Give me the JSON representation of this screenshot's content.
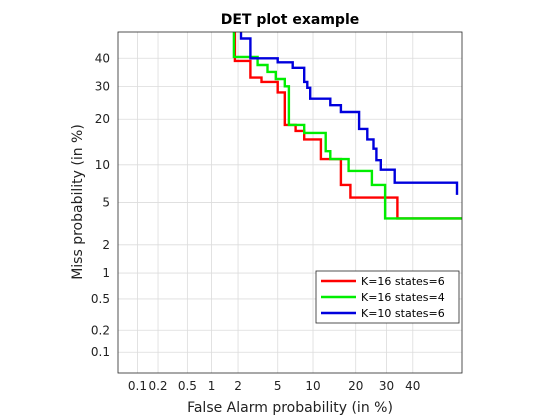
{
  "chart_data": {
    "type": "line",
    "title": "DET plot example",
    "xlabel": "False Alarm probability (in %)",
    "ylabel": "Miss probability (in %)",
    "scale": "normal-deviate (probit) on both axes",
    "xlim": [
      0.05,
      60
    ],
    "ylim": [
      0.05,
      50
    ],
    "xticks": [
      0.1,
      0.2,
      0.5,
      1,
      2,
      5,
      10,
      20,
      30,
      40
    ],
    "xtick_labels": [
      "0.1",
      "0.2",
      "0.5",
      "1",
      "2",
      "5",
      "10",
      "20",
      "30",
      "40"
    ],
    "yticks": [
      0.1,
      0.2,
      0.5,
      1,
      2,
      5,
      10,
      20,
      30,
      40
    ],
    "ytick_labels": [
      "0.1",
      "0.2",
      "0.5",
      "1",
      "2",
      "5",
      "10",
      "20",
      "30",
      "40"
    ],
    "grid": true,
    "legend": "bottom-right",
    "series": [
      {
        "name": "K=16 states=6",
        "color": "#ff0000",
        "points": [
          [
            1.85,
            60
          ],
          [
            1.85,
            39
          ],
          [
            2.7,
            39
          ],
          [
            2.7,
            33
          ],
          [
            3.5,
            33
          ],
          [
            3.5,
            31.5
          ],
          [
            5,
            31.5
          ],
          [
            5,
            28
          ],
          [
            5.8,
            28
          ],
          [
            5.8,
            18.5
          ],
          [
            7.2,
            18.5
          ],
          [
            7.2,
            17
          ],
          [
            8.5,
            17
          ],
          [
            8.5,
            15
          ],
          [
            11.5,
            15
          ],
          [
            11.5,
            11
          ],
          [
            16,
            11
          ],
          [
            16,
            7
          ],
          [
            18.5,
            7
          ],
          [
            18.5,
            5.5
          ],
          [
            34,
            5.5
          ],
          [
            34,
            3.6
          ],
          [
            60,
            3.6
          ]
        ]
      },
      {
        "name": "K=16 states=4",
        "color": "#00ee00",
        "points": [
          [
            1.8,
            60
          ],
          [
            1.8,
            40.5
          ],
          [
            3.2,
            40.5
          ],
          [
            3.2,
            37.5
          ],
          [
            4,
            37.5
          ],
          [
            4,
            35
          ],
          [
            4.8,
            35
          ],
          [
            4.8,
            32.5
          ],
          [
            5.8,
            32.5
          ],
          [
            5.8,
            30
          ],
          [
            6.3,
            30
          ],
          [
            6.3,
            18.5
          ],
          [
            8.5,
            18.5
          ],
          [
            8.5,
            16.5
          ],
          [
            12.5,
            16.5
          ],
          [
            12.5,
            12.5
          ],
          [
            13.5,
            12.5
          ],
          [
            13.5,
            11
          ],
          [
            18,
            11
          ],
          [
            18,
            9
          ],
          [
            25,
            9
          ],
          [
            25,
            7
          ],
          [
            29.5,
            7
          ],
          [
            29.5,
            3.6
          ],
          [
            60,
            3.6
          ]
        ]
      },
      {
        "name": "K=10 states=6",
        "color": "#0000dd",
        "points": [
          [
            2.15,
            60
          ],
          [
            2.15,
            47.5
          ],
          [
            2.7,
            47.5
          ],
          [
            2.7,
            40
          ],
          [
            5,
            40
          ],
          [
            5,
            38.5
          ],
          [
            6.8,
            38.5
          ],
          [
            6.8,
            36.5
          ],
          [
            8.5,
            36.5
          ],
          [
            8.5,
            31.5
          ],
          [
            9,
            31.5
          ],
          [
            9,
            29.5
          ],
          [
            9.5,
            29.5
          ],
          [
            9.5,
            26
          ],
          [
            13.5,
            26
          ],
          [
            13.5,
            24
          ],
          [
            16,
            24
          ],
          [
            16,
            22
          ],
          [
            21,
            22
          ],
          [
            21,
            17.5
          ],
          [
            23.5,
            17.5
          ],
          [
            23.5,
            15
          ],
          [
            25.5,
            15
          ],
          [
            25.5,
            13
          ],
          [
            26.5,
            13
          ],
          [
            26.5,
            10.8
          ],
          [
            28,
            10.8
          ],
          [
            28,
            9.2
          ],
          [
            33,
            9.2
          ],
          [
            33,
            7.3
          ],
          [
            58,
            7.3
          ],
          [
            58,
            5.8
          ]
        ]
      }
    ]
  }
}
